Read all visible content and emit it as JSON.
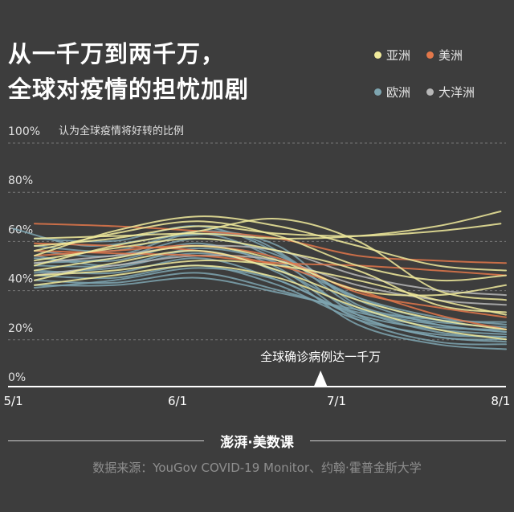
{
  "title_lines": [
    "从一千万到两千万，",
    "全球对疫情的担忧加剧"
  ],
  "legend": [
    {
      "label": "亚洲",
      "color": "#f1eb9c"
    },
    {
      "label": "美洲",
      "color": "#e2774a"
    },
    {
      "label": "欧洲",
      "color": "#7ea5b0"
    },
    {
      "label": "大洋洲",
      "color": "#b7b7b7"
    }
  ],
  "annotation": {
    "label": "全球确诊病例达一千万",
    "date": "06-28"
  },
  "logo_text": "澎湃·美数课",
  "source": "数据来源：YouGov COVID-19 Monitor、约翰·霍普金斯大学",
  "chart_data": {
    "type": "line",
    "title": "从一千万到两千万，全球对疫情的担忧加剧",
    "ylabel": "认为全球疫情将好转的比例",
    "ylim": [
      0,
      100
    ],
    "yticks": [
      {
        "value": 0,
        "label": "0%"
      },
      {
        "value": 20,
        "label": "20%"
      },
      {
        "value": 40,
        "label": "40%"
      },
      {
        "value": 60,
        "label": "60%"
      },
      {
        "value": 80,
        "label": "80%"
      },
      {
        "value": 100,
        "label": "100%"
      }
    ],
    "xticks": [
      {
        "date": "05-01",
        "label": "5/1"
      },
      {
        "date": "06-01",
        "label": "6/1"
      },
      {
        "date": "07-01",
        "label": "7/1"
      },
      {
        "date": "08-01",
        "label": "8/1"
      }
    ],
    "xlim": [
      "04-30",
      "08-02"
    ],
    "grid": true,
    "legend_placement": "top-right",
    "series": [
      {
        "group": "亚洲",
        "dates": [
          "05-05",
          "05-20",
          "06-05",
          "06-20",
          "07-05",
          "07-20",
          "08-01"
        ],
        "values": [
          55,
          56,
          57,
          55,
          56,
          60,
          66
        ]
      },
      {
        "group": "亚洲",
        "dates": [
          "05-05",
          "05-20",
          "06-05",
          "06-20",
          "07-05",
          "07-20",
          "08-01"
        ],
        "values": [
          52,
          55,
          60,
          57,
          56,
          58,
          61
        ]
      },
      {
        "group": "亚洲",
        "dates": [
          "05-05",
          "05-20",
          "06-05",
          "06-20",
          "07-05",
          "07-20",
          "08-02"
        ],
        "values": [
          48,
          58,
          64,
          60,
          52,
          44,
          42
        ]
      },
      {
        "group": "亚洲",
        "dates": [
          "05-05",
          "05-20",
          "06-05",
          "06-20",
          "07-05",
          "07-20",
          "08-02"
        ],
        "values": [
          42,
          47,
          52,
          46,
          34,
          32,
          36
        ]
      },
      {
        "group": "亚洲",
        "dates": [
          "05-05",
          "05-20",
          "06-05",
          "06-20",
          "07-05",
          "07-20",
          "08-02"
        ],
        "values": [
          38,
          45,
          50,
          42,
          30,
          22,
          18
        ]
      },
      {
        "group": "亚洲",
        "dates": [
          "05-05",
          "05-20",
          "06-05",
          "06-20",
          "07-05",
          "07-20",
          "08-02"
        ],
        "values": [
          44,
          52,
          58,
          63,
          54,
          34,
          30
        ]
      },
      {
        "group": "亚洲",
        "dates": [
          "05-05",
          "05-20",
          "06-05",
          "06-20",
          "07-05",
          "07-20",
          "08-02"
        ],
        "values": [
          46,
          51,
          55,
          50,
          42,
          28,
          25
        ]
      },
      {
        "group": "亚洲",
        "dates": [
          "05-05",
          "05-20",
          "06-05",
          "06-20",
          "07-05",
          "07-20",
          "08-02"
        ],
        "values": [
          40,
          42,
          46,
          44,
          38,
          30,
          24
        ]
      },
      {
        "group": "亚洲",
        "dates": [
          "05-05",
          "05-20",
          "06-05",
          "06-20",
          "07-05",
          "07-20",
          "08-02"
        ],
        "values": [
          36,
          40,
          44,
          39,
          27,
          18,
          14
        ]
      },
      {
        "group": "亚洲",
        "dates": [
          "05-05",
          "05-20",
          "06-05",
          "06-20",
          "07-05",
          "07-20",
          "08-02"
        ],
        "values": [
          50,
          57,
          62,
          56,
          44,
          38,
          40
        ]
      },
      {
        "group": "美洲",
        "dates": [
          "05-05",
          "05-20",
          "06-05",
          "06-20",
          "07-05",
          "07-20",
          "08-02"
        ],
        "values": [
          61,
          60,
          58,
          55,
          48,
          46,
          45
        ]
      },
      {
        "group": "美洲",
        "dates": [
          "05-05",
          "05-20",
          "06-05",
          "06-20",
          "07-05",
          "07-20",
          "08-02"
        ],
        "values": [
          50,
          49,
          48,
          45,
          44,
          42,
          40
        ]
      },
      {
        "group": "美洲",
        "dates": [
          "05-05",
          "05-20",
          "06-05",
          "06-20",
          "07-05",
          "07-20",
          "08-02"
        ],
        "values": [
          48,
          50,
          52,
          47,
          33,
          27,
          23
        ]
      },
      {
        "group": "美洲",
        "dates": [
          "05-05",
          "05-20",
          "06-05",
          "06-20",
          "07-05",
          "07-20",
          "08-02"
        ],
        "values": [
          53,
          52,
          50,
          44,
          34,
          24,
          18
        ]
      },
      {
        "group": "欧洲",
        "dates": [
          "05-01",
          "05-15",
          "06-01",
          "06-15",
          "07-01",
          "07-15",
          "08-02"
        ],
        "values": [
          59,
          52,
          56,
          55,
          35,
          24,
          18
        ]
      },
      {
        "group": "欧洲",
        "dates": [
          "05-05",
          "05-20",
          "06-05",
          "06-20",
          "07-05",
          "07-20",
          "08-02"
        ],
        "values": [
          55,
          54,
          60,
          49,
          27,
          20,
          17
        ]
      },
      {
        "group": "欧洲",
        "dates": [
          "05-05",
          "05-20",
          "06-05",
          "06-20",
          "07-05",
          "07-20",
          "08-02"
        ],
        "values": [
          50,
          48,
          57,
          46,
          24,
          15,
          14
        ]
      },
      {
        "group": "欧洲",
        "dates": [
          "05-05",
          "05-20",
          "06-05",
          "06-20",
          "07-05",
          "07-20",
          "08-02"
        ],
        "values": [
          47,
          46,
          53,
          43,
          22,
          13,
          12
        ]
      },
      {
        "group": "欧洲",
        "dates": [
          "05-05",
          "05-20",
          "06-05",
          "06-20",
          "07-05",
          "07-20",
          "08-02"
        ],
        "values": [
          44,
          44,
          50,
          41,
          20,
          12,
          10
        ]
      },
      {
        "group": "欧洲",
        "dates": [
          "05-05",
          "05-20",
          "06-05",
          "06-20",
          "07-05",
          "07-20",
          "08-02"
        ],
        "values": [
          42,
          41,
          47,
          38,
          24,
          18,
          16
        ]
      },
      {
        "group": "欧洲",
        "dates": [
          "05-05",
          "05-20",
          "06-05",
          "06-20",
          "07-05",
          "07-20",
          "08-02"
        ],
        "values": [
          40,
          39,
          44,
          36,
          22,
          16,
          15
        ]
      },
      {
        "group": "欧洲",
        "dates": [
          "05-05",
          "05-20",
          "06-05",
          "06-20",
          "07-05",
          "07-20",
          "08-02"
        ],
        "values": [
          38,
          37,
          41,
          34,
          25,
          19,
          18
        ]
      },
      {
        "group": "欧洲",
        "dates": [
          "05-05",
          "05-20",
          "06-05",
          "06-20",
          "07-05",
          "07-20",
          "08-02"
        ],
        "values": [
          36,
          36,
          39,
          33,
          26,
          21,
          19
        ]
      },
      {
        "group": "欧洲",
        "dates": [
          "05-05",
          "05-20",
          "06-05",
          "06-20",
          "07-05",
          "07-20",
          "08-02"
        ],
        "values": [
          45,
          47,
          55,
          48,
          30,
          20,
          17
        ]
      },
      {
        "group": "欧洲",
        "dates": [
          "05-05",
          "05-20",
          "06-05",
          "06-20",
          "07-05",
          "07-20",
          "08-02"
        ],
        "values": [
          52,
          50,
          58,
          52,
          28,
          22,
          21
        ]
      },
      {
        "group": "欧洲",
        "dates": [
          "05-05",
          "05-20",
          "06-05",
          "06-20",
          "07-05",
          "07-20",
          "08-02"
        ],
        "values": [
          35,
          38,
          43,
          38,
          23,
          15,
          13
        ]
      },
      {
        "group": "欧洲",
        "dates": [
          "05-05",
          "05-20",
          "06-05",
          "06-20",
          "07-05",
          "07-20",
          "08-02"
        ],
        "values": [
          48,
          44,
          51,
          45,
          31,
          23,
          20
        ]
      },
      {
        "group": "欧洲",
        "dates": [
          "05-05",
          "05-20",
          "06-05",
          "06-20",
          "07-05",
          "07-20",
          "08-02"
        ],
        "values": [
          41,
          43,
          49,
          42,
          26,
          17,
          15
        ]
      },
      {
        "group": "大洋洲",
        "dates": [
          "05-05",
          "05-20",
          "06-05",
          "06-20",
          "07-05",
          "07-20",
          "08-02"
        ],
        "values": [
          45,
          48,
          52,
          50,
          40,
          34,
          32
        ]
      },
      {
        "group": "大洋洲",
        "dates": [
          "05-05",
          "05-20",
          "06-05",
          "06-20",
          "07-05",
          "07-20",
          "08-02"
        ],
        "values": [
          40,
          44,
          48,
          46,
          36,
          30,
          28
        ]
      }
    ]
  }
}
